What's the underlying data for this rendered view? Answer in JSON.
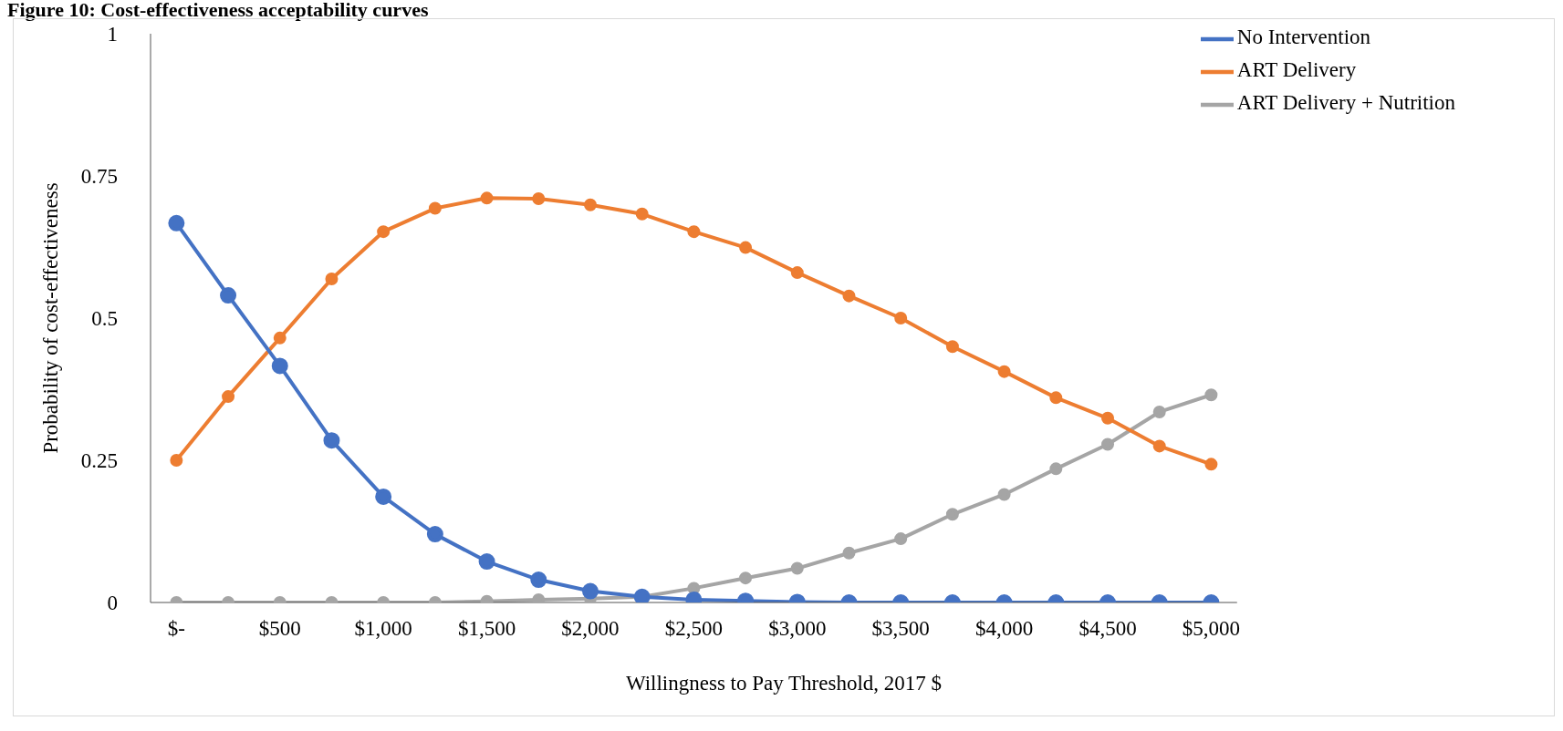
{
  "chart_data": {
    "type": "line",
    "title": "Figure 10: Cost-effectiveness acceptability curves",
    "xlabel": "Willingness to Pay Threshold, 2017 $",
    "ylabel": "Probability of cost-effectiveness",
    "x": [
      0,
      250,
      500,
      750,
      1000,
      1250,
      1500,
      1750,
      2000,
      2250,
      2500,
      2750,
      3000,
      3250,
      3500,
      3750,
      4000,
      4250,
      4500,
      4750,
      5000
    ],
    "xlim": [
      -125,
      5125
    ],
    "xticks": [
      {
        "value": 0,
        "label": "$-"
      },
      {
        "value": 500,
        "label": "$500"
      },
      {
        "value": 1000,
        "label": "$1,000"
      },
      {
        "value": 1500,
        "label": "$1,500"
      },
      {
        "value": 2000,
        "label": "$2,000"
      },
      {
        "value": 2500,
        "label": "$2,500"
      },
      {
        "value": 3000,
        "label": "$3,000"
      },
      {
        "value": 3500,
        "label": "$3,500"
      },
      {
        "value": 4000,
        "label": "$4,000"
      },
      {
        "value": 4500,
        "label": "$4,500"
      },
      {
        "value": 5000,
        "label": "$5,000"
      }
    ],
    "ylim": [
      0,
      1
    ],
    "yticks": [
      0,
      0.25,
      0.5,
      0.75,
      1
    ],
    "series": [
      {
        "name": "No Intervention",
        "color": "#4472c4",
        "values": [
          0.667,
          0.54,
          0.416,
          0.285,
          0.186,
          0.12,
          0.072,
          0.04,
          0.02,
          0.01,
          0.005,
          0.003,
          0.001,
          0,
          0,
          0,
          0,
          0,
          0,
          0,
          0
        ]
      },
      {
        "name": "ART Delivery",
        "color": "#ed7d31",
        "values": [
          0.25,
          0.362,
          0.465,
          0.569,
          0.652,
          0.693,
          0.711,
          0.71,
          0.699,
          0.683,
          0.652,
          0.624,
          0.58,
          0.539,
          0.5,
          0.45,
          0.406,
          0.36,
          0.324,
          0.275,
          0.243
        ]
      },
      {
        "name": "ART Delivery + Nutrition",
        "color": "#a5a5a5",
        "values": [
          0,
          0,
          0,
          0,
          0,
          0,
          0.002,
          0.005,
          0.007,
          0.01,
          0.025,
          0.043,
          0.06,
          0.087,
          0.112,
          0.155,
          0.19,
          0.235,
          0.278,
          0.335,
          0.365
        ]
      }
    ],
    "legend": "top right",
    "marker": "circle",
    "grid": false,
    "line_style": "solid"
  }
}
